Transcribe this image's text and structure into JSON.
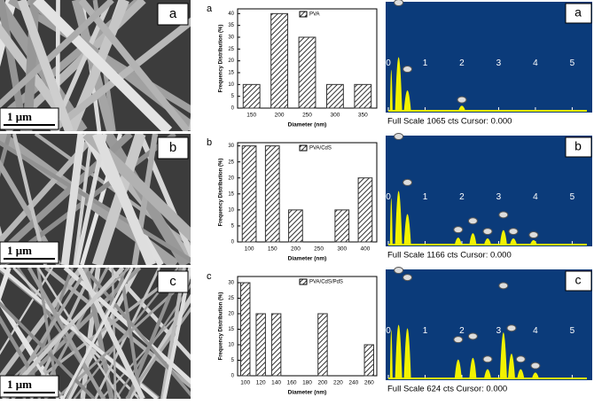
{
  "chart_data": [
    {
      "type": "bar",
      "panel": "a",
      "legend": "PVA",
      "x_label": "Diameter (nm)",
      "y_label": "Frequency Distribution (%)",
      "categories": [
        "150",
        "200",
        "250",
        "300",
        "350"
      ],
      "values": [
        10,
        40,
        30,
        10,
        10
      ],
      "ylim": [
        0,
        42
      ],
      "yticks": [
        0,
        5,
        10,
        15,
        20,
        25,
        30,
        35,
        40
      ],
      "color": "#333333"
    },
    {
      "type": "bar",
      "panel": "b",
      "legend": "PVA/CdS",
      "x_label": "Diameter (nm)",
      "y_label": "Frequency Distribution (%)",
      "categories": [
        "100",
        "150",
        "200",
        "250",
        "300",
        "400"
      ],
      "values": [
        30,
        30,
        10,
        null,
        10,
        20
      ],
      "ylim": [
        0,
        31
      ],
      "yticks": [
        0,
        5,
        10,
        15,
        20,
        25,
        30
      ],
      "color": "#333333"
    },
    {
      "type": "bar",
      "panel": "c",
      "legend": "PVA/CdS/PdS",
      "x_label": "Diameter (nm)",
      "y_label": "Frequency Distribution (%)",
      "categories": [
        "100",
        "120",
        "140",
        "160",
        "180",
        "200",
        "220",
        "240",
        "260"
      ],
      "values": [
        30,
        20,
        20,
        null,
        null,
        20,
        null,
        null,
        10
      ],
      "ylim": [
        0,
        32
      ],
      "yticks": [
        0,
        5,
        10,
        15,
        20,
        25,
        30
      ],
      "color": "#333333"
    },
    {
      "type": "spectrum",
      "panel": "a",
      "footer": "Full Scale 1065 cts Cursor: 0.000",
      "x": [
        0.08,
        0.28,
        0.52,
        2.0
      ],
      "values": [
        800,
        1065,
        370,
        50
      ],
      "xlim": [
        0,
        5.4
      ],
      "ylim": [
        0,
        1065
      ],
      "xticks": [
        0,
        1,
        2,
        3,
        4,
        5
      ],
      "color": "#f2f200",
      "background": "#0b3b7a"
    },
    {
      "type": "spectrum",
      "panel": "b",
      "footer": "Full Scale 1166 cts Cursor: 0.000",
      "x": [
        0.08,
        0.28,
        0.52,
        1.9,
        2.3,
        2.7,
        3.13,
        3.4,
        3.95
      ],
      "values": [
        1000,
        1166,
        640,
        100,
        200,
        80,
        270,
        80,
        40
      ],
      "xlim": [
        0,
        5.4
      ],
      "ylim": [
        0,
        1166
      ],
      "xticks": [
        0,
        1,
        2,
        3,
        4,
        5
      ],
      "color": "#f2f200",
      "background": "#0b3b7a"
    },
    {
      "type": "spectrum",
      "panel": "c",
      "footer": "Full Scale 624 cts Cursor: 0.000",
      "x": [
        0.08,
        0.28,
        0.52,
        1.9,
        2.3,
        2.7,
        3.13,
        3.35,
        3.6,
        4.0
      ],
      "values": [
        560,
        624,
        580,
        200,
        220,
        80,
        530,
        270,
        80,
        40
      ],
      "xlim": [
        0,
        5.4
      ],
      "ylim": [
        0,
        624
      ],
      "xticks": [
        0,
        1,
        2,
        3,
        4,
        5
      ],
      "color": "#f2f200",
      "background": "#0b3b7a"
    }
  ],
  "sem_images": [
    {
      "panel": "a",
      "scale_bar": "1 μm"
    },
    {
      "panel": "b",
      "scale_bar": "1 μm"
    },
    {
      "panel": "c",
      "scale_bar": "1 μm"
    }
  ]
}
